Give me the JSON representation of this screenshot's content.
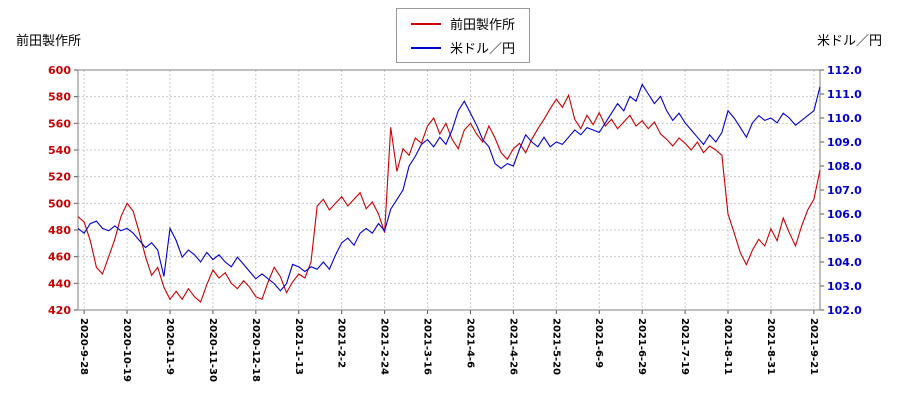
{
  "page": {
    "left_title": "前田製作所",
    "right_title": "米ドル／円"
  },
  "legend": {
    "items": [
      {
        "label": "前田製作所",
        "color": "#cc0000"
      },
      {
        "label": "米ドル／円",
        "color": "#0000cc"
      }
    ]
  },
  "chart_data": {
    "type": "line",
    "title": "",
    "xlabel": "",
    "legend_position": "top-center",
    "grid": true,
    "grid_color": "#c8c8c8",
    "x_tick_labels": [
      "2020-9-28",
      "2020-10-19",
      "2020-11-9",
      "2020-11-30",
      "2020-12-18",
      "2021-1-13",
      "2021-2-2",
      "2021-2-24",
      "2021-3-16",
      "2021-4-6",
      "2021-4-26",
      "2021-5-20",
      "2021-6-9",
      "2021-6-29",
      "2021-7-19",
      "2021-8-11",
      "2021-8-31",
      "2021-9-21"
    ],
    "x_tick_indices": [
      1,
      8,
      15,
      22,
      29,
      36,
      43,
      50,
      57,
      64,
      71,
      78,
      85,
      92,
      99,
      106,
      113,
      120
    ],
    "left_axis": {
      "label": "前田製作所",
      "min": 420,
      "max": 600,
      "tick_step": 20,
      "color": "#cc0000"
    },
    "right_axis": {
      "label": "米ドル／円",
      "min": 102,
      "max": 112,
      "tick_step": 1,
      "color": "#0000cc"
    },
    "series": [
      {
        "name": "前田製作所",
        "axis": "left",
        "color": "#cc0000",
        "values": [
          490,
          486,
          472,
          452,
          447,
          460,
          473,
          490,
          500,
          494,
          478,
          460,
          446,
          452,
          437,
          428,
          434,
          428,
          436,
          430,
          426,
          439,
          450,
          444,
          448,
          440,
          436,
          442,
          437,
          430,
          428,
          441,
          452,
          445,
          433,
          441,
          447,
          444,
          456,
          498,
          503,
          495,
          500,
          505,
          498,
          503,
          508,
          496,
          501,
          492,
          478,
          557,
          524,
          541,
          536,
          549,
          545,
          558,
          564,
          552,
          560,
          548,
          541,
          555,
          560,
          552,
          546,
          558,
          549,
          538,
          533,
          541,
          545,
          538,
          548,
          556,
          563,
          571,
          578,
          572,
          581,
          563,
          556,
          566,
          559,
          568,
          558,
          563,
          556,
          561,
          566,
          558,
          562,
          556,
          561,
          552,
          548,
          543,
          549,
          545,
          540,
          546,
          538,
          543,
          540,
          536,
          492,
          478,
          463,
          454,
          465,
          473,
          468,
          481,
          472,
          489,
          478,
          468,
          483,
          495,
          503,
          525
        ]
      },
      {
        "name": "米ドル／円",
        "axis": "right",
        "color": "#0000cc",
        "values": [
          105.4,
          105.2,
          105.6,
          105.7,
          105.4,
          105.3,
          105.5,
          105.3,
          105.4,
          105.2,
          104.9,
          104.6,
          104.8,
          104.5,
          103.4,
          105.4,
          104.9,
          104.2,
          104.5,
          104.3,
          104.0,
          104.4,
          104.1,
          104.3,
          104.0,
          103.8,
          104.2,
          103.9,
          103.6,
          103.3,
          103.5,
          103.3,
          103.1,
          102.8,
          103.1,
          103.9,
          103.8,
          103.6,
          103.8,
          103.7,
          104.0,
          103.7,
          104.3,
          104.8,
          105.0,
          104.7,
          105.2,
          105.4,
          105.2,
          105.6,
          105.3,
          106.2,
          106.6,
          107.0,
          108.0,
          108.4,
          108.9,
          109.1,
          108.8,
          109.2,
          108.9,
          109.5,
          110.3,
          110.7,
          110.2,
          109.7,
          109.1,
          108.8,
          108.1,
          107.9,
          108.1,
          108.0,
          108.7,
          109.3,
          109.0,
          108.8,
          109.2,
          108.8,
          109.0,
          108.9,
          109.2,
          109.5,
          109.3,
          109.6,
          109.5,
          109.4,
          109.8,
          110.2,
          110.6,
          110.3,
          110.9,
          110.7,
          111.4,
          111.0,
          110.6,
          110.9,
          110.3,
          109.9,
          110.2,
          109.8,
          109.5,
          109.2,
          108.9,
          109.3,
          109.0,
          109.4,
          110.3,
          110.0,
          109.6,
          109.2,
          109.8,
          110.1,
          109.9,
          110.0,
          109.8,
          110.2,
          110.0,
          109.7,
          109.9,
          110.1,
          110.3,
          111.3
        ]
      }
    ]
  }
}
